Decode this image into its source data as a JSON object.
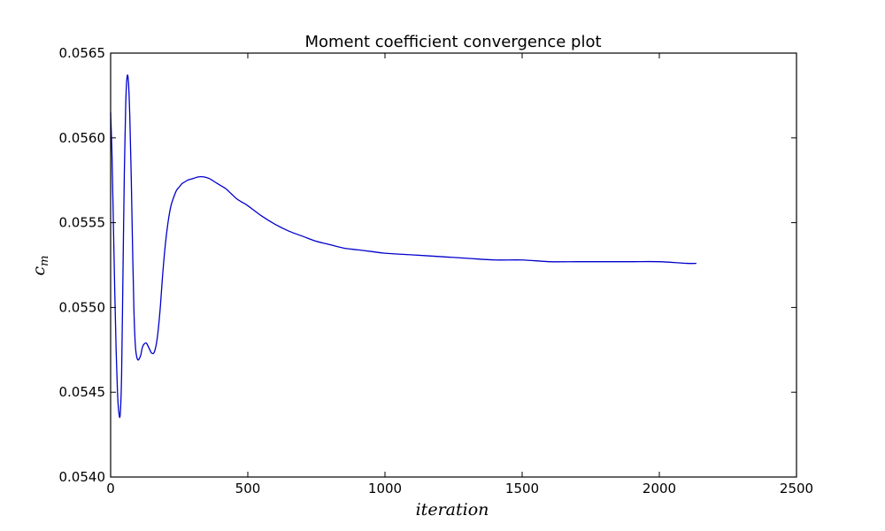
{
  "chart_data": {
    "type": "line",
    "title": "Moment coefficient convergence plot",
    "xlabel": "iteration",
    "ylabel": "c",
    "ylabel_subscript": "m",
    "xlim": [
      0,
      2500
    ],
    "ylim": [
      0.054,
      0.0565
    ],
    "xticks": [
      0,
      500,
      1000,
      1500,
      2000,
      2500
    ],
    "xtick_labels": [
      "0",
      "500",
      "1000",
      "1500",
      "2000",
      "2500"
    ],
    "yticks": [
      0.054,
      0.0545,
      0.055,
      0.0555,
      0.056,
      0.0565
    ],
    "ytick_labels": [
      "0.0540",
      "0.0545",
      "0.0550",
      "0.0555",
      "0.0560",
      "0.0565"
    ],
    "grid": false,
    "line_color": "#0000cc",
    "series": [
      {
        "x": [
          0,
          5,
          10,
          15,
          20,
          25,
          30,
          35,
          40,
          45,
          50,
          55,
          60,
          65,
          70,
          75,
          80,
          85,
          90,
          95,
          100,
          105,
          110,
          115,
          120,
          130,
          140,
          150,
          160,
          170,
          180,
          190,
          200,
          210,
          220,
          230,
          240,
          250,
          260,
          270,
          280,
          300,
          320,
          340,
          360,
          380,
          400,
          420,
          440,
          460,
          480,
          500,
          550,
          600,
          650,
          700,
          750,
          800,
          850,
          900,
          950,
          1000,
          1100,
          1200,
          1300,
          1400,
          1500,
          1600,
          1700,
          1800,
          1900,
          2000,
          2100,
          2135
        ],
        "y": [
          0.05615,
          0.0559,
          0.0555,
          0.0551,
          0.05475,
          0.0545,
          0.05438,
          0.05437,
          0.0546,
          0.0552,
          0.0558,
          0.0562,
          0.05636,
          0.05633,
          0.05612,
          0.05578,
          0.05535,
          0.05498,
          0.05478,
          0.05471,
          0.05469,
          0.0547,
          0.05472,
          0.05476,
          0.05478,
          0.05479,
          0.05476,
          0.05473,
          0.05474,
          0.05482,
          0.05498,
          0.0552,
          0.05538,
          0.05551,
          0.0556,
          0.05565,
          0.05569,
          0.05571,
          0.05573,
          0.05574,
          0.05575,
          0.05576,
          0.05577,
          0.05577,
          0.05576,
          0.05574,
          0.05572,
          0.0557,
          0.05567,
          0.05564,
          0.05562,
          0.0556,
          0.05554,
          0.05549,
          0.05545,
          0.05542,
          0.05539,
          0.05537,
          0.05535,
          0.05534,
          0.05533,
          0.05532,
          0.05531,
          0.0553,
          0.05529,
          0.05528,
          0.05528,
          0.05527,
          0.05527,
          0.05527,
          0.05527,
          0.05527,
          0.05526,
          0.05526
        ]
      }
    ]
  }
}
